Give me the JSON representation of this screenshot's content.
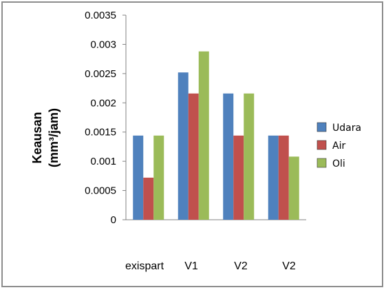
{
  "chart_data": {
    "type": "bar",
    "categories": [
      "exispart",
      "V1",
      "V2",
      "V2"
    ],
    "series": [
      {
        "name": "Udara",
        "values": [
          0.00144,
          0.00252,
          0.00216,
          0.00144
        ],
        "color": "#4f81bd"
      },
      {
        "name": "Air",
        "values": [
          0.00072,
          0.00216,
          0.00144,
          0.00144
        ],
        "color": "#c0504d"
      },
      {
        "name": "Oli",
        "values": [
          0.00144,
          0.00288,
          0.00216,
          0.00108
        ],
        "color": "#9bbb59"
      }
    ],
    "ylabel_line1": "Keausan",
    "ylabel_line2": "(mm³/jam)",
    "ylim": [
      0,
      0.0035
    ],
    "yticks": [
      "0",
      "0.0005",
      "0.001",
      "0.0015",
      "0.002",
      "0.0025",
      "0.003",
      "0.0035"
    ],
    "grid": false,
    "legend_position": "right"
  }
}
